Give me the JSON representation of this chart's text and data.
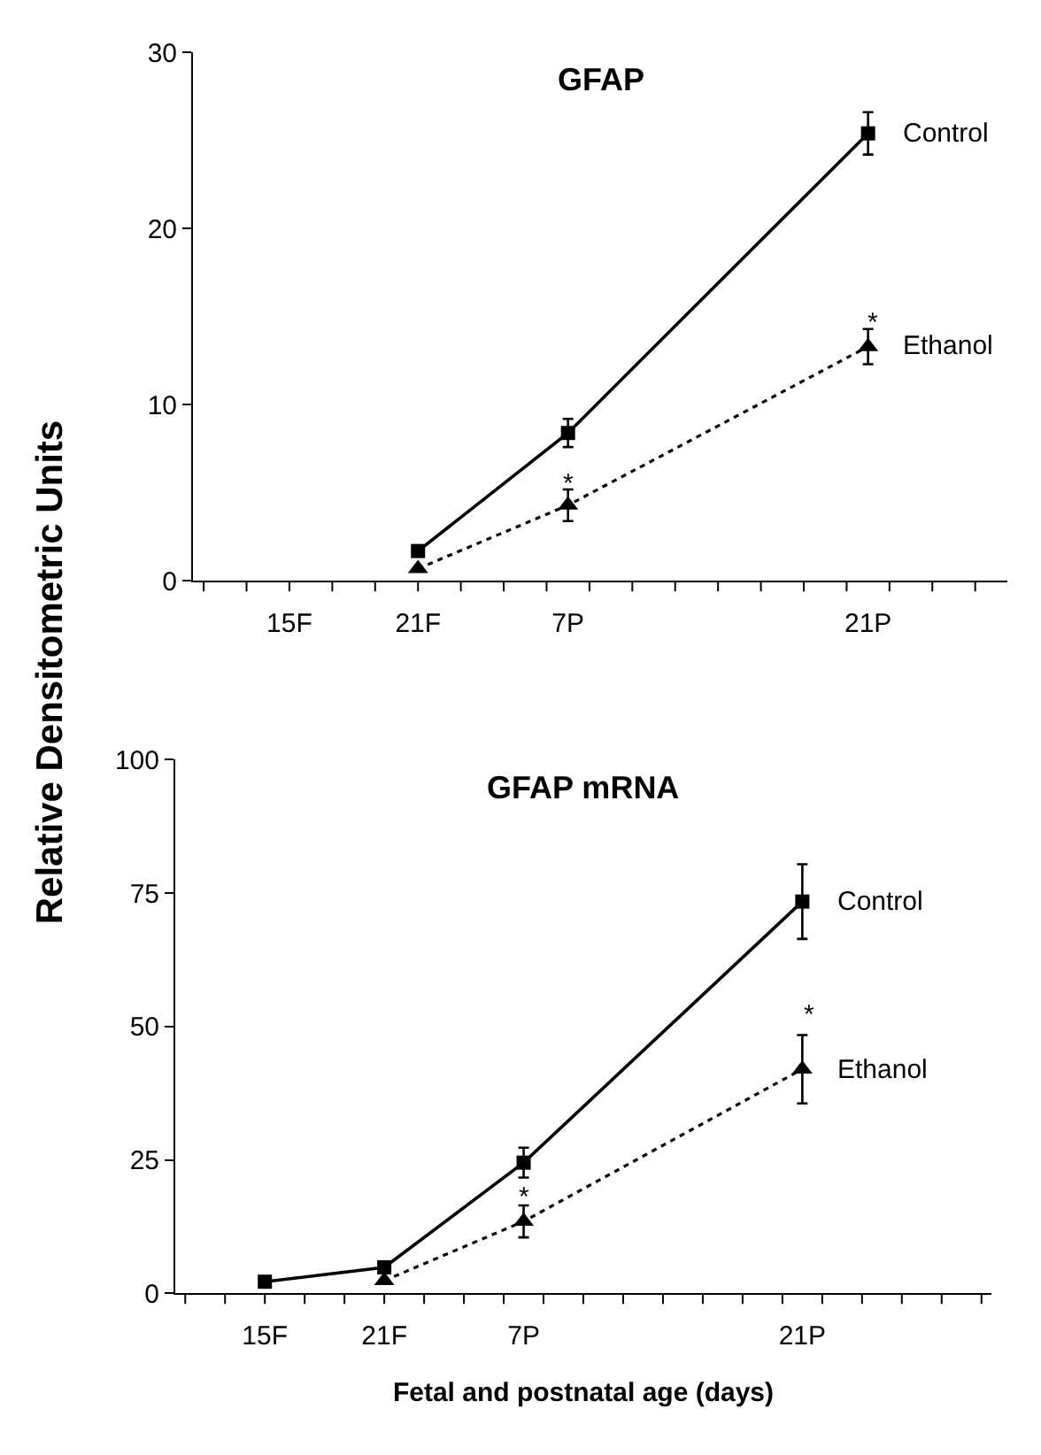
{
  "chart_data": [
    {
      "type": "line",
      "title": "GFAP",
      "ylabel": "Relative Densitometric Units",
      "ylim": [
        0,
        30
      ],
      "yticks": [
        0,
        10,
        20,
        30
      ],
      "categories": [
        null,
        null,
        null,
        null,
        "15F",
        null,
        null,
        null,
        null,
        null,
        "21F",
        null,
        null,
        null,
        null,
        null,
        null,
        "7P",
        null,
        null,
        null,
        null,
        null,
        null,
        null,
        null,
        null,
        null,
        null,
        null,
        null,
        "21P",
        null,
        null,
        null,
        null,
        null,
        null
      ],
      "grid": false,
      "legend": false,
      "series": [
        {
          "name": "Control",
          "color": "#000000",
          "marker": "square",
          "line_style": "solid",
          "x": [
            "21F",
            "7P",
            "21P"
          ],
          "values": [
            1.7,
            8.4,
            25.4
          ],
          "errors": [
            null,
            0.8,
            1.2
          ]
        },
        {
          "name": "Ethanol",
          "color": "#000000",
          "marker": "triangle",
          "line_style": "dotted",
          "x": [
            "21F",
            "7P",
            "21P"
          ],
          "values": [
            0.7,
            4.3,
            13.3
          ],
          "errors": [
            null,
            0.9,
            1.0
          ]
        }
      ],
      "annotations": [
        "*",
        "*"
      ]
    },
    {
      "type": "line",
      "title": "GFAP mRNA",
      "xlabel": "Fetal and postnatal age (days)",
      "ylim": [
        0,
        100
      ],
      "yticks": [
        0,
        25,
        50,
        75,
        100
      ],
      "categories": [
        null,
        null,
        null,
        null,
        "15F",
        null,
        null,
        null,
        null,
        null,
        "21F",
        null,
        null,
        null,
        null,
        null,
        null,
        "7P",
        null,
        null,
        null,
        null,
        null,
        null,
        null,
        null,
        null,
        null,
        null,
        null,
        null,
        "21P",
        null,
        null,
        null,
        null,
        null,
        null,
        null,
        null,
        null
      ],
      "grid": false,
      "legend": false,
      "series": [
        {
          "name": "Control",
          "color": "#000000",
          "marker": "square",
          "line_style": "solid",
          "x": [
            "15F",
            "21F",
            "7P",
            "21P"
          ],
          "values": [
            2.2,
            4.9,
            24.5,
            73.4
          ],
          "errors": [
            null,
            null,
            2.8,
            7
          ]
        },
        {
          "name": "Ethanol",
          "color": "#000000",
          "marker": "triangle",
          "line_style": "dotted",
          "x": [
            "21F",
            "7P",
            "21P"
          ],
          "values": [
            2.4,
            13.5,
            42
          ],
          "errors": [
            null,
            3,
            6.4
          ]
        }
      ],
      "annotations": [
        "*",
        "*"
      ]
    }
  ]
}
